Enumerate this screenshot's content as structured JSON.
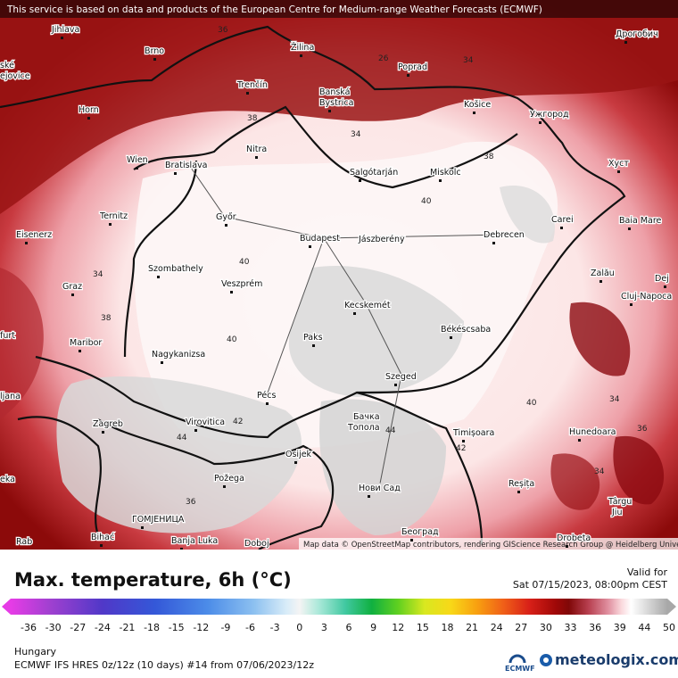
{
  "header": {
    "notice": "This service is based on data and products of the European Centre for Medium-range Weather Forecasts (ECMWF)"
  },
  "map": {
    "attribution": "Map data © OpenStreetMap contributors, rendering GIScience Research Group @ Heidelberg University",
    "cities": [
      "Jihlava",
      "Brno",
      "Žilina",
      "Poprad",
      "Дрогобич",
      "ské",
      "ejovice",
      "Trenčín",
      "Banská",
      "Bystrica",
      "Košice",
      "Ужгород",
      "Horn",
      "Nitra",
      "Salgótarján",
      "Miskolc",
      "Хуст",
      "Wien",
      "Bratislava",
      "Ternitz",
      "Győr",
      "Budapest",
      "Jászberény",
      "Debrecen",
      "Carei",
      "Baia Mare",
      "Eisenerz",
      "Szombathely",
      "Veszprém",
      "Zalău",
      "Graz",
      "Kecskemét",
      "Dej",
      "Cluj-Napoca",
      "furt",
      "Maribor",
      "Paks",
      "Békéscsaba",
      "Nagykanizsa",
      "Szeged",
      "Pécs",
      "ljana",
      "Zagreb",
      "Virovitica",
      "Бачка",
      "Топола",
      "Timișoara",
      "Hunedoara",
      "Osijek",
      "Požega",
      "Нови Сад",
      "Reșița",
      "Târgu",
      "Jiu",
      "ГОМЈЕНИЦА",
      "Bihać",
      "Banja Luka",
      "Doboj",
      "Београд",
      "Drobeta",
      "Rab",
      "eka"
    ],
    "contour_labels": [
      36,
      26,
      34,
      38,
      34,
      38,
      40,
      34,
      40,
      38,
      40,
      40,
      42,
      44,
      44,
      42,
      34,
      36,
      34,
      36
    ]
  },
  "legend": {
    "title": "Max. temperature, 6h (°C)",
    "valid_label": "Valid for",
    "valid_time": "Sat 07/15/2023, 08:00pm CEST",
    "ticks": [
      -36,
      -30,
      -27,
      -24,
      -21,
      -18,
      -15,
      -12,
      -9,
      -6,
      -3,
      0,
      3,
      6,
      9,
      12,
      15,
      18,
      21,
      24,
      27,
      30,
      33,
      36,
      39,
      44,
      50
    ]
  },
  "footer": {
    "region": "Hungary",
    "model": "ECMWF IFS HRES 0z/12z (10 days) #14 from 07/06/2023/12z",
    "ecmwf_logo": "ECMWF",
    "brand": "meteologix.com"
  }
}
